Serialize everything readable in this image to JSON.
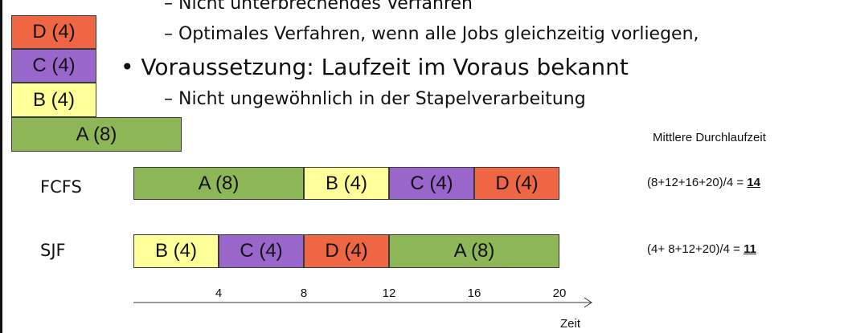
{
  "colors": {
    "A": "#8db657",
    "B": "#feff99",
    "C": "#9966cc",
    "D": "#ee6644"
  },
  "bullets": {
    "line_nonpreemptive": "– Nicht unterbrechendes Verfahren",
    "line_optimal": "– Optimales Verfahren, wenn alle Jobs gleichzeitig vorliegen,",
    "line_voraussetzung": "• Voraussetzung: Laufzeit im Voraus bekannt",
    "line_batch": "– Nicht ungewöhnlich in der Stapelverarbeitung"
  },
  "stack": {
    "D": "D (4)",
    "C": "C (4)",
    "B": "B (4)",
    "A": "A (8)"
  },
  "heading_avg": "Mittlere Durchlaufzeit",
  "fcfs": {
    "label": "FCFS",
    "jobs": [
      {
        "label": "A (8)",
        "duration": 8,
        "color": "A"
      },
      {
        "label": "B (4)",
        "duration": 4,
        "color": "B"
      },
      {
        "label": "C (4)",
        "duration": 4,
        "color": "C"
      },
      {
        "label": "D (4)",
        "duration": 4,
        "color": "D"
      }
    ],
    "formula": "(8+12+16+20)/4 = ",
    "result": "14"
  },
  "sjf": {
    "label": "SJF",
    "jobs": [
      {
        "label": "B (4)",
        "duration": 4,
        "color": "B"
      },
      {
        "label": "C (4)",
        "duration": 4,
        "color": "C"
      },
      {
        "label": "D (4)",
        "duration": 4,
        "color": "D"
      },
      {
        "label": "A (8)",
        "duration": 8,
        "color": "A"
      }
    ],
    "formula": "(4+ 8+12+20)/4 = ",
    "result": "11"
  },
  "axis": {
    "ticks": [
      "4",
      "8",
      "12",
      "16",
      "20"
    ],
    "label": "Zeit"
  }
}
